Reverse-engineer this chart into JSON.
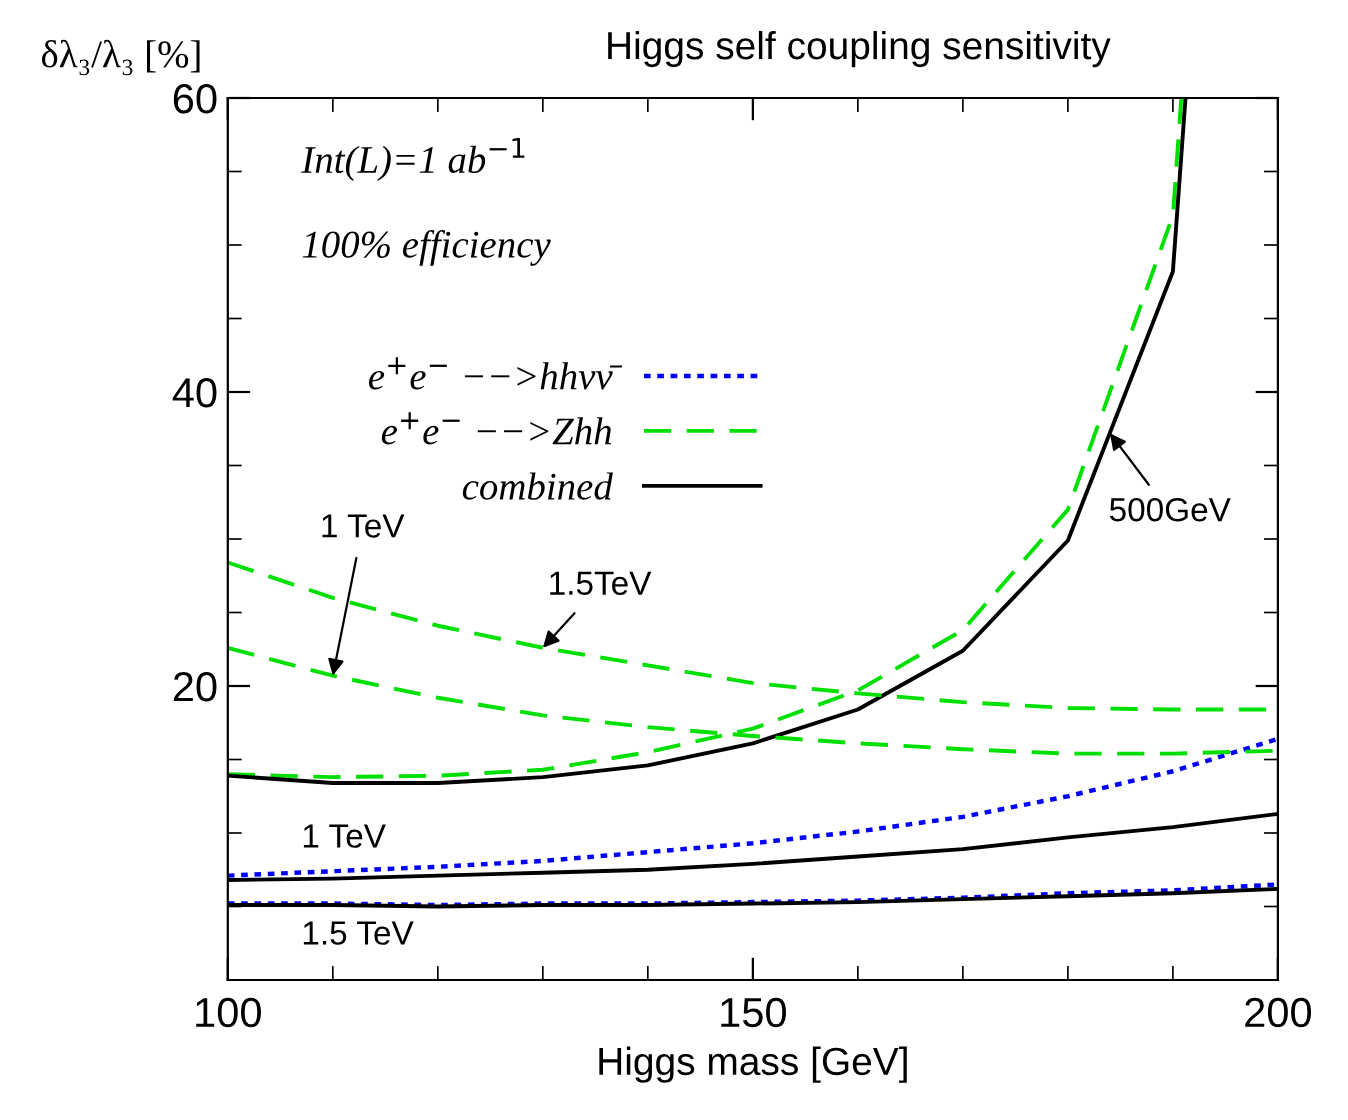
{
  "chart_data": {
    "type": "line",
    "title": "Higgs self coupling sensitivity",
    "xlabel": "Higgs mass [GeV]",
    "ylabel": "δλ₃/λ₃ [%]",
    "x": [
      100,
      110,
      120,
      130,
      140,
      150,
      160,
      170,
      180,
      190,
      200
    ],
    "series": [
      {
        "name": "e$^{+}$e$^{−}$ −−>hhνν̄",
        "color": "#0000ff",
        "line_style": "dotted",
        "values": [
          7.1,
          7.4,
          7.7,
          8.1,
          8.7,
          9.3,
          10.1,
          11.1,
          12.5,
          14.2,
          16.4
        ]
      },
      {
        "name": "e$^{+}$e$^{−}$ −−>Zhh",
        "color": "#00e000",
        "line_style": "dashed",
        "x": [
          100,
          110,
          120,
          130,
          140,
          150,
          160,
          170,
          180,
          190,
          190.8
        ],
        "values": [
          14.0,
          13.8,
          13.9,
          14.3,
          15.5,
          17.1,
          19.7,
          23.8,
          32.0,
          52.0,
          60
        ]
      },
      {
        "name": "combined",
        "color": "#000000",
        "line_style": "solid",
        "x": [
          100,
          110,
          120,
          130,
          140,
          150,
          160,
          170,
          180,
          190,
          191.2
        ],
        "values": [
          13.9,
          13.4,
          13.4,
          13.8,
          14.6,
          16.1,
          18.4,
          22.4,
          29.9,
          48.2,
          60
        ]
      },
      {
        "color": "#00e000",
        "line_style": "dashed",
        "values": [
          22.6,
          20.7,
          19.2,
          18.0,
          17.2,
          16.6,
          16.1,
          15.7,
          15.4,
          15.4,
          15.6
        ]
      },
      {
        "color": "#00e000",
        "line_style": "dashed",
        "values": [
          28.4,
          26.0,
          24.1,
          22.6,
          21.4,
          20.2,
          19.5,
          18.9,
          18.5,
          18.4,
          18.4
        ]
      },
      {
        "color": "#000000",
        "line_style": "solid",
        "values": [
          6.8,
          6.9,
          7.1,
          7.3,
          7.5,
          7.9,
          8.4,
          8.9,
          9.7,
          10.4,
          11.3
        ]
      },
      {
        "color": "#0000ff",
        "line_style": "dotted",
        "values": [
          5.2,
          5.2,
          5.1,
          5.2,
          5.2,
          5.3,
          5.4,
          5.6,
          5.9,
          6.1,
          6.5
        ]
      },
      {
        "color": "#000000",
        "line_style": "solid",
        "values": [
          5.1,
          5.1,
          5.0,
          5.1,
          5.1,
          5.2,
          5.3,
          5.5,
          5.7,
          5.9,
          6.2
        ]
      }
    ],
    "xlim": [
      100,
      200
    ],
    "ylim": [
      0,
      60
    ],
    "xticks": [
      100,
      {
        "value": 110,
        "label": null
      },
      {
        "value": 120,
        "label": null
      },
      {
        "value": 130,
        "label": null
      },
      {
        "value": 140,
        "label": null
      },
      150,
      {
        "value": 160,
        "label": null
      },
      {
        "value": 170,
        "label": null
      },
      {
        "value": 180,
        "label": null
      },
      {
        "value": 190,
        "label": null
      },
      200
    ],
    "yticks": [
      {
        "value": 5,
        "label": null
      },
      {
        "value": 10,
        "label": null
      },
      {
        "value": 15,
        "label": null
      },
      20,
      {
        "value": 25,
        "label": null
      },
      {
        "value": 30,
        "label": null
      },
      {
        "value": 35,
        "label": null
      },
      40,
      {
        "value": 45,
        "label": null
      },
      {
        "value": 50,
        "label": null
      },
      {
        "value": 55,
        "label": null
      },
      60
    ],
    "grid": false,
    "legend": "top left",
    "marker": "none",
    "annotations": [
      "Int(L)=1 ab$^{−1}$",
      "100% efficiency",
      "1 TeV",
      "1.5 TeV",
      {
        "text": "1 TeV",
        "x": 110,
        "y": 20.7
      },
      {
        "text": "1.5TeV",
        "x": 130,
        "y": 22.6
      },
      {
        "text": "500GeV",
        "x": 184,
        "y": 37.2
      }
    ]
  }
}
